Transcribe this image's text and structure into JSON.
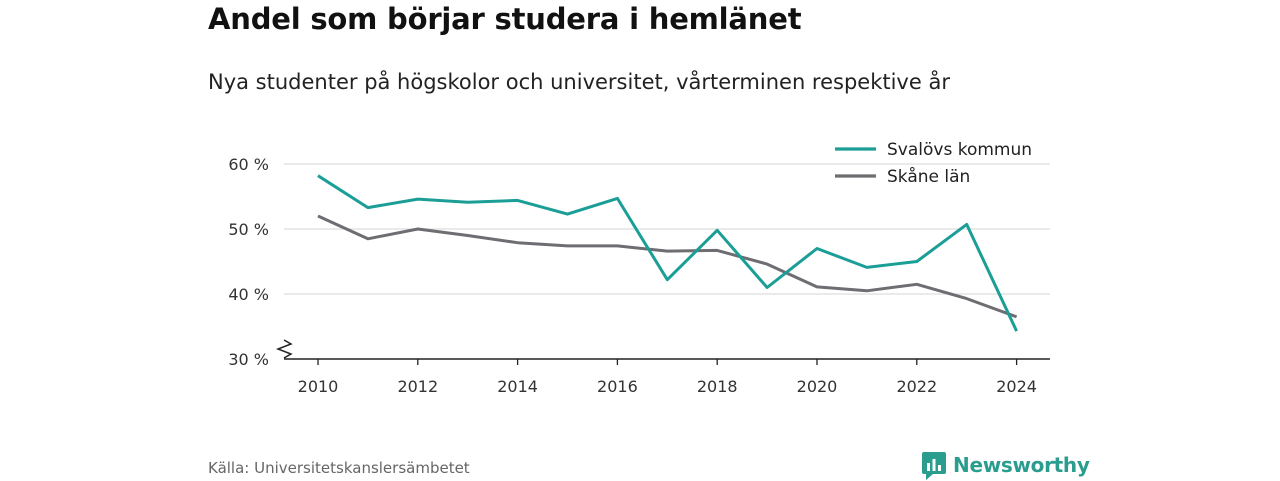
{
  "header": {
    "title": "Andel som börjar studera i hemlänet",
    "subtitle": "Nya studenter på högskolor och universitet, vårterminen respektive år"
  },
  "footer": {
    "source": "Källa: Universitetskanslersämbetet",
    "brand": "Newsworthy",
    "brand_icon": "bar-chart-bubble-icon",
    "brand_color": "#2a9d8f"
  },
  "chart_data": {
    "type": "line",
    "x": [
      2010,
      2011,
      2012,
      2013,
      2014,
      2015,
      2016,
      2017,
      2018,
      2019,
      2020,
      2021,
      2022,
      2023,
      2024
    ],
    "series": [
      {
        "name": "Svalövs kommun",
        "color": "#1a9e96",
        "values": [
          58.2,
          53.3,
          54.6,
          54.1,
          54.4,
          52.3,
          54.7,
          42.2,
          49.8,
          41.0,
          47.0,
          44.1,
          45.0,
          50.7,
          34.3
        ]
      },
      {
        "name": "Skåne län",
        "color": "#6d6d72",
        "values": [
          52.0,
          48.5,
          50.0,
          49.0,
          47.9,
          47.4,
          47.4,
          46.6,
          46.7,
          44.6,
          41.1,
          40.5,
          41.5,
          39.3,
          36.5
        ]
      }
    ],
    "xticks": [
      "2010",
      "2012",
      "2014",
      "2016",
      "2018",
      "2020",
      "2022",
      "2024"
    ],
    "yticks": [
      "30 %",
      "40 %",
      "50 %",
      "60 %"
    ],
    "ylim": [
      30,
      63
    ],
    "xlim": [
      2009.3,
      2024.7
    ],
    "y_axis_break": true,
    "grid": "horizontal",
    "legend_position": "top-right",
    "xlabel": "",
    "ylabel": ""
  }
}
